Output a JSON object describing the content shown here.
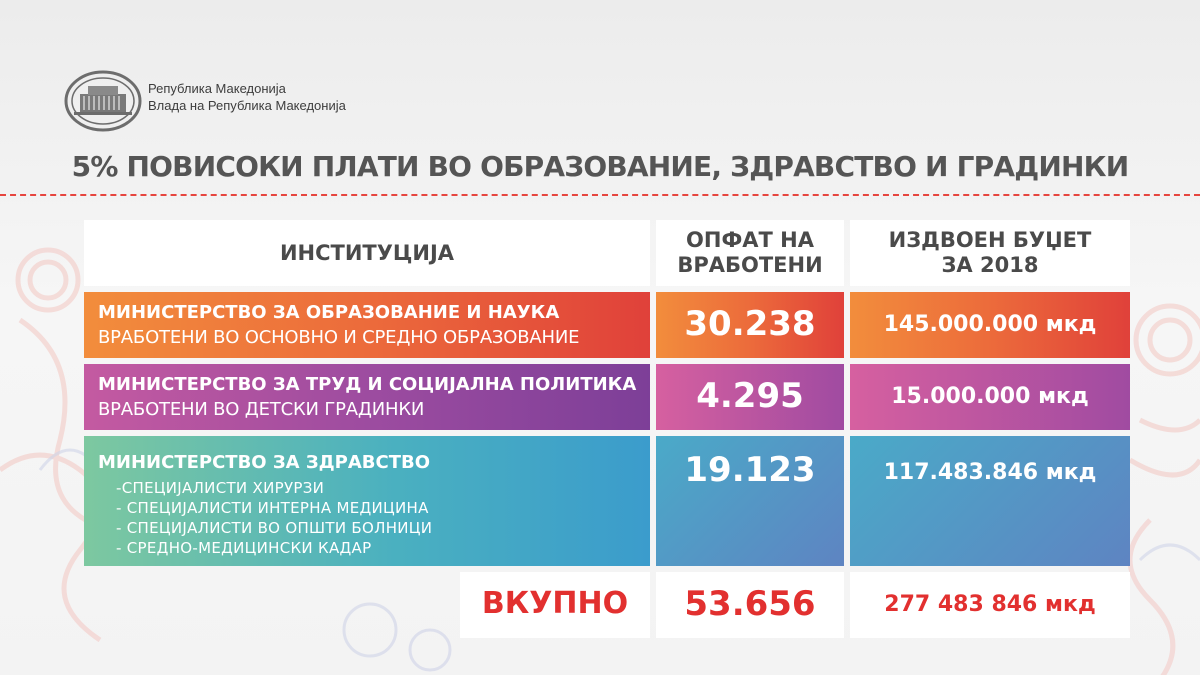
{
  "government": {
    "logo_icon": "government-building-logo-icon",
    "line1": "Република Македонија",
    "line2": "Влада на Република Македонија"
  },
  "headline": "5% ПОВИСОКИ ПЛАТИ ВО ОБРАЗОВАНИЕ, ЗДРАВСТВО И ГРАДИНКИ",
  "table": {
    "headers": {
      "institution": "ИНСТИТУЦИЈА",
      "employees_line1": "ОПФАТ НА",
      "employees_line2": "ВРАБОТЕНИ",
      "budget_line1": "ИЗДВОЕН БУЏЕТ",
      "budget_line2": "ЗА 2018"
    },
    "rows": [
      {
        "ministry": "МИНИСТЕРСТВО ЗА ОБРАЗОВАНИЕ И НАУКА",
        "description": "ВРАБОТЕНИ ВО ОСНОВНО И СРЕДНО ОБРАЗОВАНИЕ",
        "employees": "30.238",
        "budget": "145.000.000 мкд",
        "color": "#ec6b3b"
      },
      {
        "ministry": "МИНИСТЕРСТВО ЗА ТРУД И СОЦИЈАЛНА ПОЛИТИКА",
        "description": "ВРАБОТЕНИ ВО ДЕТСКИ ГРАДИНКИ",
        "employees": "4.295",
        "budget": "15.000.000 мкд",
        "color": "#9d4ca0"
      },
      {
        "ministry": "МИНИСТЕРСТВО ЗА ЗДРАВСТВО",
        "items": [
          "-СПЕЦИЈАЛИСТИ ХИРУРЗИ",
          "- СПЕЦИЈАЛИСТИ ИНТЕРНА МЕДИЦИНА",
          "- СПЕЦИЈАЛИСТИ ВО ОПШТИ БОЛНИЦИ",
          "- СРЕДНО-МЕДИЦИНСКИ КАДАР"
        ],
        "employees": "19.123",
        "budget": "117.483.846 мкд",
        "color": "#4ab0c0"
      }
    ],
    "total": {
      "label": "ВКУПНО",
      "employees": "53.656",
      "budget": "277 483 846 мкд",
      "color": "#e2302f"
    }
  }
}
